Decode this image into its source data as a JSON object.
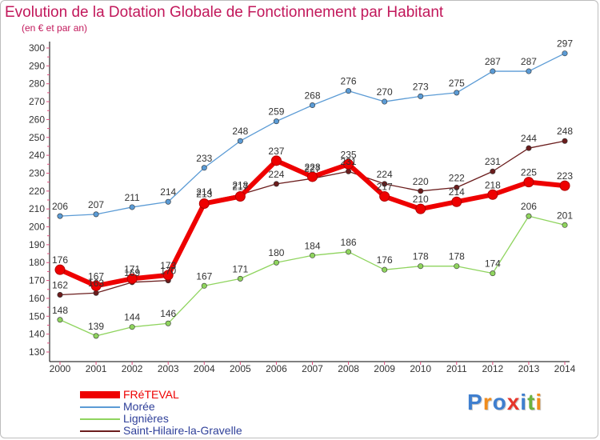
{
  "title": "Evolution de la Dotation Globale de Fonctionnement par Habitant",
  "subtitle": "(en € et par an)",
  "logo": {
    "letters": [
      "P",
      "r",
      "o",
      "x",
      "i",
      "t",
      "i"
    ],
    "colors": [
      "#3f7fcf",
      "#f08c1c",
      "#3f7fcf",
      "#e6362c",
      "#3f7fcf",
      "#6cb33f",
      "#f08c1c"
    ]
  },
  "colors": {
    "accent": "#c2185b",
    "axis": "#000000",
    "grid": "#d0d0d0",
    "tick_marks": "#e05080"
  },
  "chart_data": {
    "type": "line",
    "title": "Evolution de la Dotation Globale de Fonctionnement par Habitant",
    "subtitle": "(en € et par an)",
    "x": [
      "2000",
      "2001",
      "2002",
      "2003",
      "2004",
      "2005",
      "2006",
      "2007",
      "2008",
      "2009",
      "2010",
      "2011",
      "2012",
      "2013",
      "2014"
    ],
    "ylim": [
      130,
      300
    ],
    "yticks": [
      130,
      140,
      150,
      160,
      170,
      180,
      190,
      200,
      210,
      220,
      230,
      240,
      250,
      260,
      270,
      280,
      290,
      300
    ],
    "grid": false,
    "legend_position": "bottom-left",
    "series": [
      {
        "name": "Saint-Hilaire-la-Gravelle",
        "color": "#6b1d1d",
        "values": [
          162,
          163,
          169,
          170,
          214,
          218,
          224,
          227,
          231,
          224,
          220,
          222,
          231,
          244,
          248
        ]
      },
      {
        "name": "Morée",
        "color": "#5b9bd5",
        "values": [
          206,
          207,
          211,
          214,
          233,
          248,
          259,
          268,
          276,
          270,
          273,
          275,
          287,
          287,
          297
        ]
      },
      {
        "name": "Lignières",
        "color": "#8fd45e",
        "values": [
          148,
          139,
          144,
          146,
          167,
          171,
          180,
          184,
          186,
          176,
          178,
          178,
          174,
          206,
          201
        ]
      },
      {
        "name": "FRéTEVAL",
        "color": "#ee0000",
        "values": [
          176,
          167,
          171,
          173,
          213,
          217,
          237,
          228,
          235,
          217,
          210,
          214,
          218,
          225,
          223
        ]
      }
    ],
    "legend_order": [
      "FRéTEVAL",
      "Morée",
      "Lignières",
      "Saint-Hilaire-la-Gravelle"
    ]
  }
}
